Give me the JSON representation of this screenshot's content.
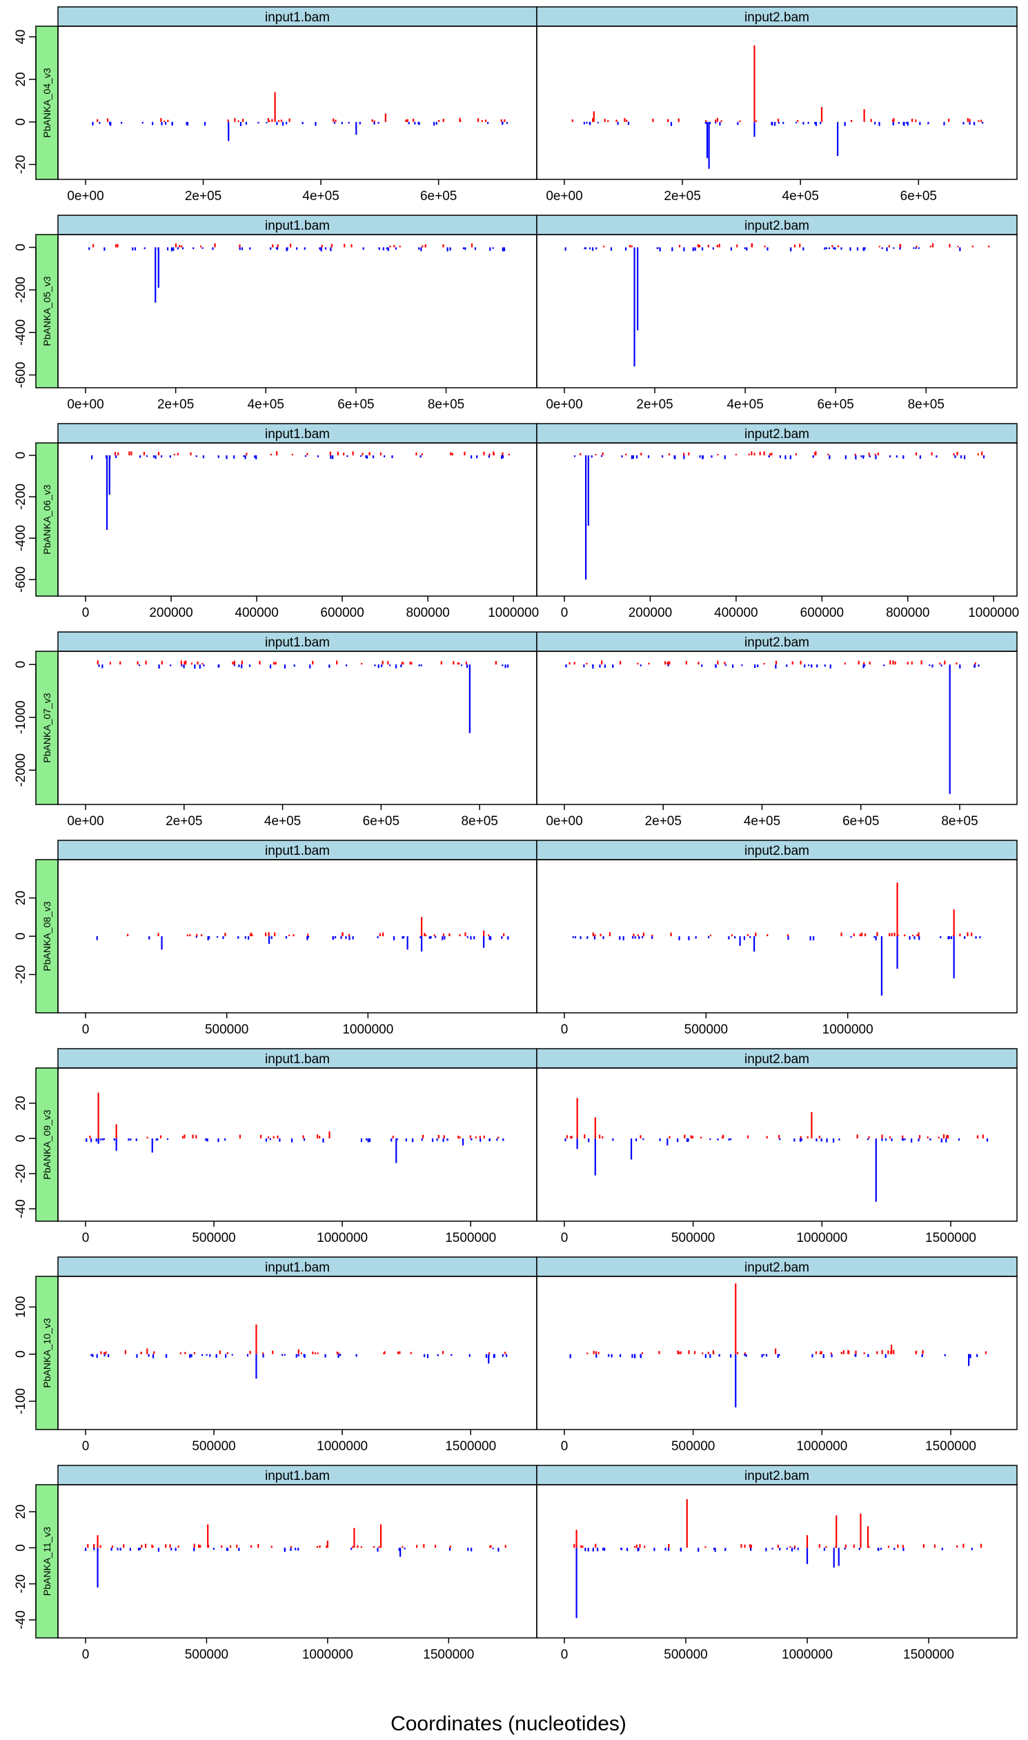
{
  "figure": {
    "xlabel": "Coordinates (nucleotides)",
    "colors": {
      "strip": "#ADD8E6",
      "row_strip": "#90EE90",
      "positive": "#FF0000",
      "negative": "#0000FF",
      "frame": "#000000"
    }
  },
  "chart_data": [
    {
      "type": "bar",
      "row_label": "PbANKA_04_v3",
      "panels": [
        "input1.bam",
        "input2.bam"
      ],
      "xlim": [
        0,
        720000
      ],
      "ylim": [
        -27,
        45
      ],
      "yticks": [
        -20,
        0,
        20,
        40
      ],
      "ytick_labels": [
        "-20",
        "0",
        "20",
        "40"
      ],
      "xticks": [
        0,
        200000,
        400000,
        600000
      ],
      "xtick_labels": [
        "0e+00",
        "2e+05",
        "4e+05",
        "6e+05"
      ],
      "series": [
        {
          "panel": "input1.bam",
          "spikes": [
            [
              322000,
              14
            ],
            [
              243000,
              -9
            ],
            [
              460000,
              -6
            ],
            [
              510000,
              4
            ],
            [
              140000,
              1
            ]
          ]
        },
        {
          "panel": "input2.bam",
          "spikes": [
            [
              322000,
              36
            ],
            [
              322000,
              -7
            ],
            [
              245000,
              -22
            ],
            [
              242000,
              -17
            ],
            [
              436000,
              7
            ],
            [
              463000,
              -16
            ],
            [
              508000,
              6
            ],
            [
              50000,
              5
            ]
          ]
        }
      ]
    },
    {
      "type": "bar",
      "row_label": "PbANKA_05_v3",
      "panels": [
        "input1.bam",
        "input2.bam"
      ],
      "xlim": [
        0,
        940000
      ],
      "ylim": [
        -660,
        60
      ],
      "yticks": [
        -600,
        -400,
        -200,
        0
      ],
      "ytick_labels": [
        "-600",
        "-400",
        "-200",
        "0"
      ],
      "xticks": [
        0,
        200000,
        400000,
        600000,
        800000
      ],
      "xtick_labels": [
        "0e+00",
        "2e+05",
        "4e+05",
        "6e+05",
        "8e+05"
      ],
      "series": [
        {
          "panel": "input1.bam",
          "spikes": [
            [
              155000,
              -260
            ],
            [
              162000,
              -190
            ]
          ]
        },
        {
          "panel": "input2.bam",
          "spikes": [
            [
              155000,
              -560
            ],
            [
              162000,
              -390
            ]
          ]
        }
      ]
    },
    {
      "type": "bar",
      "row_label": "PbANKA_06_v3",
      "panels": [
        "input1.bam",
        "input2.bam"
      ],
      "xlim": [
        0,
        990000
      ],
      "ylim": [
        -680,
        60
      ],
      "yticks": [
        -600,
        -400,
        -200,
        0
      ],
      "ytick_labels": [
        "-600",
        "-400",
        "-200",
        "0"
      ],
      "xticks": [
        0,
        200000,
        400000,
        600000,
        800000,
        1000000
      ],
      "xtick_labels": [
        "0",
        "200000",
        "400000",
        "600000",
        "800000",
        "1000000"
      ],
      "series": [
        {
          "panel": "input1.bam",
          "spikes": [
            [
              50000,
              -360
            ],
            [
              56000,
              -190
            ]
          ]
        },
        {
          "panel": "input2.bam",
          "spikes": [
            [
              50000,
              -600
            ],
            [
              56000,
              -340
            ],
            [
              430000,
              8
            ]
          ]
        }
      ]
    },
    {
      "type": "bar",
      "row_label": "PbANKA_07_v3",
      "panels": [
        "input1.bam",
        "input2.bam"
      ],
      "xlim": [
        0,
        860000
      ],
      "ylim": [
        -2650,
        250
      ],
      "yticks": [
        -2000,
        -1000,
        0
      ],
      "ytick_labels": [
        "-2000",
        "-1000",
        "0"
      ],
      "xticks": [
        0,
        200000,
        400000,
        600000,
        800000
      ],
      "xtick_labels": [
        "0e+00",
        "2e+05",
        "4e+05",
        "6e+05",
        "8e+05"
      ],
      "series": [
        {
          "panel": "input1.bam",
          "spikes": [
            [
              780000,
              -1300
            ]
          ]
        },
        {
          "panel": "input2.bam",
          "spikes": [
            [
              780000,
              -2450
            ]
          ]
        }
      ]
    },
    {
      "type": "bar",
      "row_label": "PbANKA_08_v3",
      "panels": [
        "input1.bam",
        "input2.bam"
      ],
      "xlim": [
        0,
        1500000
      ],
      "ylim": [
        -40,
        40
      ],
      "yticks": [
        -20,
        0,
        20
      ],
      "ytick_labels": [
        "-20",
        "0",
        "20"
      ],
      "xticks": [
        0,
        500000,
        1000000
      ],
      "xtick_labels": [
        "0",
        "500000",
        "1000000"
      ],
      "series": [
        {
          "panel": "input1.bam",
          "spikes": [
            [
              1190000,
              10
            ],
            [
              1190000,
              -8
            ],
            [
              1140000,
              -7
            ],
            [
              1410000,
              -6
            ],
            [
              1410000,
              3
            ],
            [
              270000,
              -7
            ],
            [
              650000,
              -4
            ]
          ]
        },
        {
          "panel": "input2.bam",
          "spikes": [
            [
              1175000,
              28
            ],
            [
              1175000,
              -17
            ],
            [
              1120000,
              -31
            ],
            [
              1375000,
              14
            ],
            [
              1375000,
              -22
            ],
            [
              670000,
              -8
            ],
            [
              620000,
              -5
            ]
          ]
        }
      ]
    },
    {
      "type": "bar",
      "row_label": "PbANKA_09_v3",
      "panels": [
        "input1.bam",
        "input2.bam"
      ],
      "xlim": [
        0,
        1650000
      ],
      "ylim": [
        -47,
        40
      ],
      "yticks": [
        -40,
        -20,
        0,
        20
      ],
      "ytick_labels": [
        "-40",
        "-20",
        "0",
        "20"
      ],
      "xticks": [
        0,
        500000,
        1000000,
        1500000
      ],
      "xtick_labels": [
        "0",
        "500000",
        "1000000",
        "1500000"
      ],
      "series": [
        {
          "panel": "input1.bam",
          "spikes": [
            [
              50000,
              26
            ],
            [
              50000,
              -3
            ],
            [
              120000,
              8
            ],
            [
              120000,
              -7
            ],
            [
              260000,
              -8
            ],
            [
              950000,
              4
            ],
            [
              1210000,
              -14
            ],
            [
              1470000,
              -4
            ]
          ]
        },
        {
          "panel": "input2.bam",
          "spikes": [
            [
              50000,
              23
            ],
            [
              50000,
              -6
            ],
            [
              120000,
              12
            ],
            [
              120000,
              -21
            ],
            [
              260000,
              -12
            ],
            [
              960000,
              15
            ],
            [
              1210000,
              -36
            ],
            [
              400000,
              -4
            ]
          ]
        }
      ]
    },
    {
      "type": "bar",
      "row_label": "PbANKA_10_v3",
      "panels": [
        "input1.bam",
        "input2.bam"
      ],
      "xlim": [
        0,
        1650000
      ],
      "ylim": [
        -160,
        165
      ],
      "yticks": [
        -100,
        0,
        100
      ],
      "ytick_labels": [
        "-100",
        "0",
        "100"
      ],
      "xticks": [
        0,
        500000,
        1000000,
        1500000
      ],
      "xtick_labels": [
        "0",
        "500000",
        "1000000",
        "1500000"
      ],
      "series": [
        {
          "panel": "input1.bam",
          "spikes": [
            [
              665000,
              63
            ],
            [
              665000,
              -52
            ],
            [
              240000,
              12
            ],
            [
              830000,
              10
            ],
            [
              1570000,
              -20
            ]
          ]
        },
        {
          "panel": "input2.bam",
          "spikes": [
            [
              665000,
              150
            ],
            [
              665000,
              -113
            ],
            [
              820000,
              12
            ],
            [
              1270000,
              20
            ],
            [
              1570000,
              -25
            ]
          ]
        }
      ]
    },
    {
      "type": "bar",
      "row_label": "PbANKA_11_v3",
      "panels": [
        "input1.bam",
        "input2.bam"
      ],
      "xlim": [
        0,
        1750000
      ],
      "ylim": [
        -50,
        35
      ],
      "yticks": [
        -40,
        -20,
        0,
        20
      ],
      "ytick_labels": [
        "-40",
        "-20",
        "0",
        "20"
      ],
      "xticks": [
        0,
        500000,
        1000000,
        1500000
      ],
      "xtick_labels": [
        "0",
        "500000",
        "1000000",
        "1500000"
      ],
      "series": [
        {
          "panel": "input1.bam",
          "spikes": [
            [
              50000,
              7
            ],
            [
              50000,
              -22
            ],
            [
              505000,
              13
            ],
            [
              1110000,
              11
            ],
            [
              1220000,
              13
            ],
            [
              1000000,
              4
            ],
            [
              1300000,
              -5
            ]
          ]
        },
        {
          "panel": "input2.bam",
          "spikes": [
            [
              50000,
              10
            ],
            [
              50000,
              -39
            ],
            [
              505000,
              27
            ],
            [
              1000000,
              7
            ],
            [
              1110000,
              -11
            ],
            [
              1120000,
              18
            ],
            [
              1220000,
              19
            ],
            [
              1250000,
              12
            ],
            [
              1130000,
              -10
            ],
            [
              1000000,
              -9
            ]
          ]
        }
      ]
    }
  ]
}
